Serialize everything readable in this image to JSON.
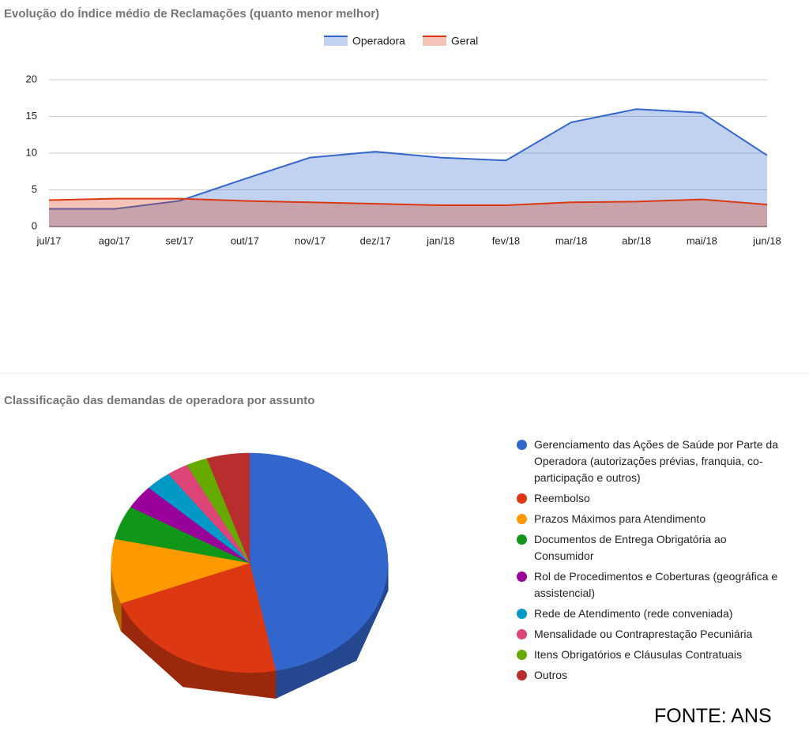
{
  "chart_data": [
    {
      "type": "area",
      "title": "Evolução do Índice médio de Reclamações (quanto menor melhor)",
      "categories": [
        "jul/17",
        "ago/17",
        "set/17",
        "out/17",
        "nov/17",
        "dez/17",
        "jan/18",
        "fev/18",
        "mar/18",
        "abr/18",
        "mai/18",
        "jun/18"
      ],
      "series": [
        {
          "name": "Operadora",
          "color": "#3366cc",
          "values": [
            2.4,
            2.4,
            3.5,
            6.5,
            9.4,
            10.2,
            9.4,
            9.0,
            14.2,
            16.0,
            15.5,
            9.7
          ]
        },
        {
          "name": "Geral",
          "color": "#dc3912",
          "values": [
            3.6,
            3.8,
            3.8,
            3.5,
            3.3,
            3.1,
            2.9,
            2.9,
            3.3,
            3.4,
            3.7,
            3.0
          ]
        }
      ],
      "ylim": [
        0,
        20
      ],
      "yticks": [
        0,
        5,
        10,
        15,
        20
      ],
      "grid": true,
      "legend": "top"
    },
    {
      "type": "pie3d",
      "title": "Classificação das demandas de operadora por assunto",
      "categories": [
        "Gerenciamento das Ações de Saúde por Parte da Operadora (autorizações prévias, franquia, co-participação e outros)",
        "Reembolso",
        "Prazos Máximos para Atendimento",
        "Documentos de Entrega Obrigatória ao Consumidor",
        "Rol de Procedimentos e Coberturas (geográfica e assistencial)",
        "Rede de Atendimento (rede conveniada)",
        "Mensalidade ou Contraprestação Pecuniária",
        "Itens Obrigatórios e Cláusulas Contratuais",
        "Outros"
      ],
      "values": [
        47,
        22,
        9.5,
        5,
        3.5,
        3,
        2.5,
        2.5,
        5
      ],
      "colors": [
        "#3366cc",
        "#dc3912",
        "#ff9900",
        "#109618",
        "#990099",
        "#0099c6",
        "#dd4477",
        "#66aa00",
        "#b82e2e"
      ],
      "legend": "right"
    }
  ],
  "source": "FONTE: ANS"
}
